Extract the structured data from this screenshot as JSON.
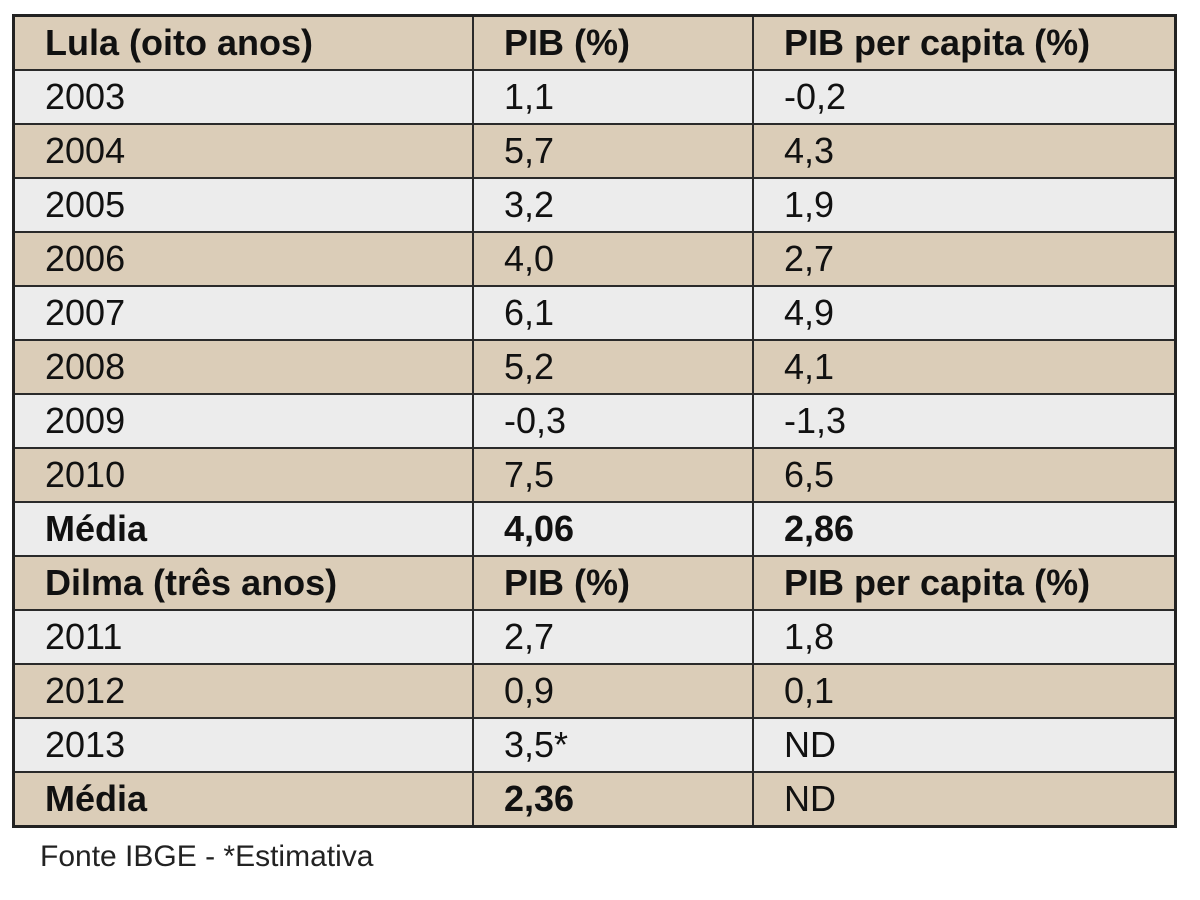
{
  "lula_section": {
    "header": [
      "Lula (oito anos)",
      "PIB (%)",
      "PIB per capita (%)"
    ],
    "rows": [
      [
        "2003",
        "1,1",
        "-0,2"
      ],
      [
        "2004",
        "5,7",
        "4,3"
      ],
      [
        "2005",
        "3,2",
        "1,9"
      ],
      [
        "2006",
        "4,0",
        "2,7"
      ],
      [
        "2007",
        "6,1",
        "4,9"
      ],
      [
        "2008",
        "5,2",
        "4,1"
      ],
      [
        "2009",
        "-0,3",
        "-1,3"
      ],
      [
        "2010",
        "7,5",
        "6,5"
      ]
    ],
    "average": [
      "Média",
      "4,06",
      "2,86"
    ]
  },
  "dilma_section": {
    "header": [
      "Dilma (três anos)",
      "PIB (%)",
      "PIB per capita (%)"
    ],
    "rows": [
      [
        "2011",
        "2,7",
        "1,8"
      ],
      [
        "2012",
        "0,9",
        "0,1"
      ],
      [
        "2013",
        "3,5*",
        "ND"
      ]
    ],
    "average": [
      "Média",
      "2,36",
      "ND"
    ]
  },
  "footnote": "Fonte IBGE - *Estimativa",
  "colors": {
    "row_tan": "#dbcdb8",
    "row_light": "#ececec",
    "border": "#2a2a2a"
  }
}
